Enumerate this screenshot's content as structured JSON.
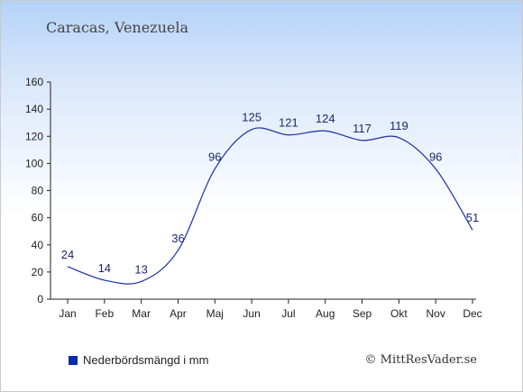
{
  "header": {
    "title": "Caracas, Venezuela"
  },
  "legend": {
    "label": "Nederbördsmängd i mm",
    "color": "#0a2aa8"
  },
  "credit": "© MittResVader.se",
  "chart_data": {
    "type": "line",
    "title": "Caracas, Venezuela",
    "xlabel": "",
    "ylabel": "",
    "categories": [
      "Jan",
      "Feb",
      "Mar",
      "Apr",
      "Maj",
      "Jun",
      "Jul",
      "Aug",
      "Sep",
      "Okt",
      "Nov",
      "Dec"
    ],
    "series": [
      {
        "name": "Nederbördsmängd i mm",
        "values": [
          24,
          14,
          13,
          36,
          96,
          125,
          121,
          124,
          117,
          119,
          96,
          51
        ],
        "color": "#1a2fa8"
      }
    ],
    "ylim": [
      0,
      160
    ],
    "yticks": [
      0,
      20,
      40,
      60,
      80,
      100,
      120,
      140,
      160
    ],
    "grid": false,
    "legend_position": "bottom-left"
  }
}
